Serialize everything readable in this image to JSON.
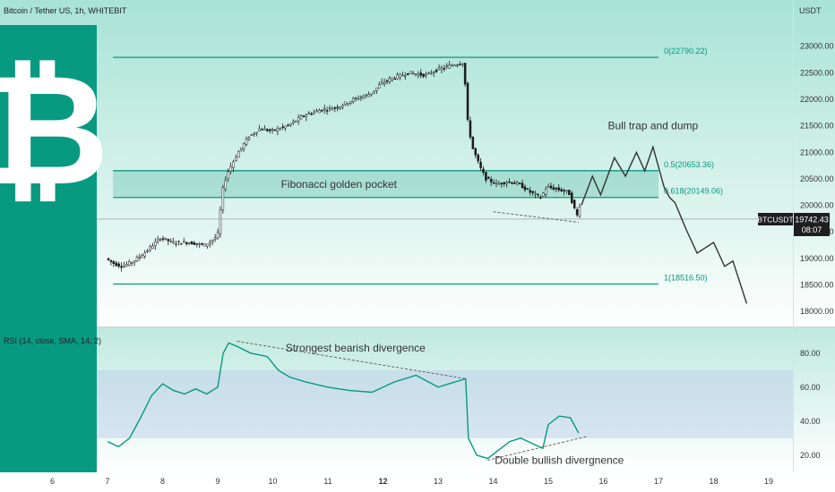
{
  "header": {
    "title": "Bitcoin / Tether US, 1h, WHITEBIT"
  },
  "price_scale": {
    "currency_label": "USDT"
  },
  "price_badge": {
    "symbol": "BTCUSDT",
    "price": "19742.43",
    "countdown": "08:07"
  },
  "colors": {
    "accent": "#089981",
    "logo_bg": "#089981",
    "line_dark": "#333333",
    "background_top": "#a8e3d6",
    "background_bottom": "#ffffff"
  },
  "icons": {
    "logo": "bitcoin-logo-icon"
  },
  "chart_data": [
    {
      "type": "candlestick",
      "title": "Bitcoin / Tether US, 1h, WHITEBIT",
      "xlabel": "",
      "ylabel": "",
      "ylim": [
        17800,
        23400
      ],
      "y_ticks": [
        "23000.00",
        "22500.00",
        "22000.00",
        "21500.00",
        "21000.00",
        "20500.00",
        "20000.00",
        "19500.00",
        "19000.00",
        "18500.00",
        "18000.00"
      ],
      "x_ticks": [
        "6",
        "7",
        "8",
        "9",
        "10",
        "11",
        "12",
        "13",
        "14",
        "15",
        "16",
        "17",
        "18",
        "19"
      ],
      "grid": false,
      "price_path": [
        [
          7.0,
          19000
        ],
        [
          7.15,
          18900
        ],
        [
          7.3,
          18850
        ],
        [
          7.5,
          18950
        ],
        [
          7.7,
          19100
        ],
        [
          7.9,
          19300
        ],
        [
          8.0,
          19400
        ],
        [
          8.2,
          19300
        ],
        [
          8.5,
          19300
        ],
        [
          8.8,
          19250
        ],
        [
          9.0,
          19400
        ],
        [
          9.05,
          19500
        ],
        [
          9.1,
          20200
        ],
        [
          9.2,
          20600
        ],
        [
          9.4,
          21000
        ],
        [
          9.6,
          21300
        ],
        [
          9.8,
          21450
        ],
        [
          10.0,
          21400
        ],
        [
          10.3,
          21500
        ],
        [
          10.6,
          21700
        ],
        [
          10.9,
          21800
        ],
        [
          11.2,
          21850
        ],
        [
          11.5,
          22000
        ],
        [
          11.8,
          22100
        ],
        [
          12.0,
          22300
        ],
        [
          12.2,
          22400
        ],
        [
          12.5,
          22500
        ],
        [
          12.8,
          22450
        ],
        [
          13.0,
          22550
        ],
        [
          13.3,
          22650
        ],
        [
          13.5,
          22700
        ],
        [
          13.55,
          21700
        ],
        [
          13.65,
          21100
        ],
        [
          13.8,
          20700
        ],
        [
          13.9,
          20500
        ],
        [
          14.1,
          20400
        ],
        [
          14.3,
          20450
        ],
        [
          14.5,
          20400
        ],
        [
          14.7,
          20250
        ],
        [
          14.9,
          20150
        ],
        [
          15.0,
          20350
        ],
        [
          15.2,
          20300
        ],
        [
          15.4,
          20250
        ],
        [
          15.55,
          19800
        ],
        [
          15.6,
          20000
        ]
      ],
      "projection": [
        [
          15.6,
          20000
        ],
        [
          15.8,
          20550
        ],
        [
          15.95,
          20200
        ],
        [
          16.2,
          20900
        ],
        [
          16.4,
          20550
        ],
        [
          16.6,
          21000
        ],
        [
          16.75,
          20650
        ],
        [
          16.9,
          21100
        ],
        [
          17.1,
          20350
        ],
        [
          17.2,
          20150
        ],
        [
          17.3,
          20050
        ],
        [
          17.5,
          19550
        ],
        [
          17.7,
          19100
        ],
        [
          18.0,
          19300
        ],
        [
          18.2,
          18850
        ],
        [
          18.35,
          18950
        ],
        [
          18.6,
          18150
        ]
      ],
      "fib_levels": [
        {
          "label": "0(22790.22)",
          "value": 22790.22
        },
        {
          "label": "0.5(20653.36)",
          "value": 20653.36
        },
        {
          "label": "0.618(20149.06)",
          "value": 20149.06
        },
        {
          "label": "1(18516.50)",
          "value": 18516.5
        }
      ],
      "fib_x_range": [
        7.1,
        17.0
      ],
      "last_price": 19742.43,
      "annotations": [
        {
          "text": "Fibonacci golden pocket",
          "x": 11.2,
          "y": 20400
        },
        {
          "text": "Bull trap and dump",
          "x": 16.9,
          "y": 21500
        }
      ],
      "divergence_line": [
        [
          14.0,
          19880
        ],
        [
          15.55,
          19680
        ]
      ]
    },
    {
      "type": "line",
      "title": "RSI (14, close, SMA, 14, 2)",
      "xlabel": "",
      "ylabel": "",
      "ylim": [
        12,
        92
      ],
      "y_ticks": [
        "80.00",
        "60.00",
        "40.00",
        "20.00"
      ],
      "band": [
        30,
        70
      ],
      "grid": false,
      "rsi": [
        [
          7.0,
          28
        ],
        [
          7.2,
          25
        ],
        [
          7.4,
          30
        ],
        [
          7.6,
          42
        ],
        [
          7.8,
          55
        ],
        [
          8.0,
          62
        ],
        [
          8.2,
          58
        ],
        [
          8.4,
          56
        ],
        [
          8.6,
          59
        ],
        [
          8.8,
          56
        ],
        [
          9.0,
          60
        ],
        [
          9.1,
          80
        ],
        [
          9.2,
          86
        ],
        [
          9.35,
          84
        ],
        [
          9.6,
          80
        ],
        [
          9.9,
          78
        ],
        [
          10.1,
          70
        ],
        [
          10.3,
          66
        ],
        [
          10.6,
          63
        ],
        [
          11.0,
          60
        ],
        [
          11.4,
          58
        ],
        [
          11.8,
          57
        ],
        [
          12.2,
          63
        ],
        [
          12.6,
          67
        ],
        [
          13.0,
          60
        ],
        [
          13.3,
          63
        ],
        [
          13.5,
          65
        ],
        [
          13.55,
          30
        ],
        [
          13.7,
          20
        ],
        [
          13.9,
          18
        ],
        [
          14.1,
          23
        ],
        [
          14.3,
          28
        ],
        [
          14.5,
          30
        ],
        [
          14.7,
          27
        ],
        [
          14.9,
          24
        ],
        [
          15.0,
          38
        ],
        [
          15.2,
          43
        ],
        [
          15.4,
          42
        ],
        [
          15.55,
          33
        ]
      ],
      "annotations": [
        {
          "text": "Strongest bearish divergence",
          "x": 11.5,
          "y": 83
        },
        {
          "text": "Double bullish divergnence",
          "x": 15.2,
          "y": 17
        }
      ],
      "bearish_divergence_line": [
        [
          9.35,
          87
        ],
        [
          13.5,
          65
        ]
      ],
      "bullish_divergence_line": [
        [
          13.9,
          17
        ],
        [
          15.7,
          31
        ]
      ]
    }
  ]
}
